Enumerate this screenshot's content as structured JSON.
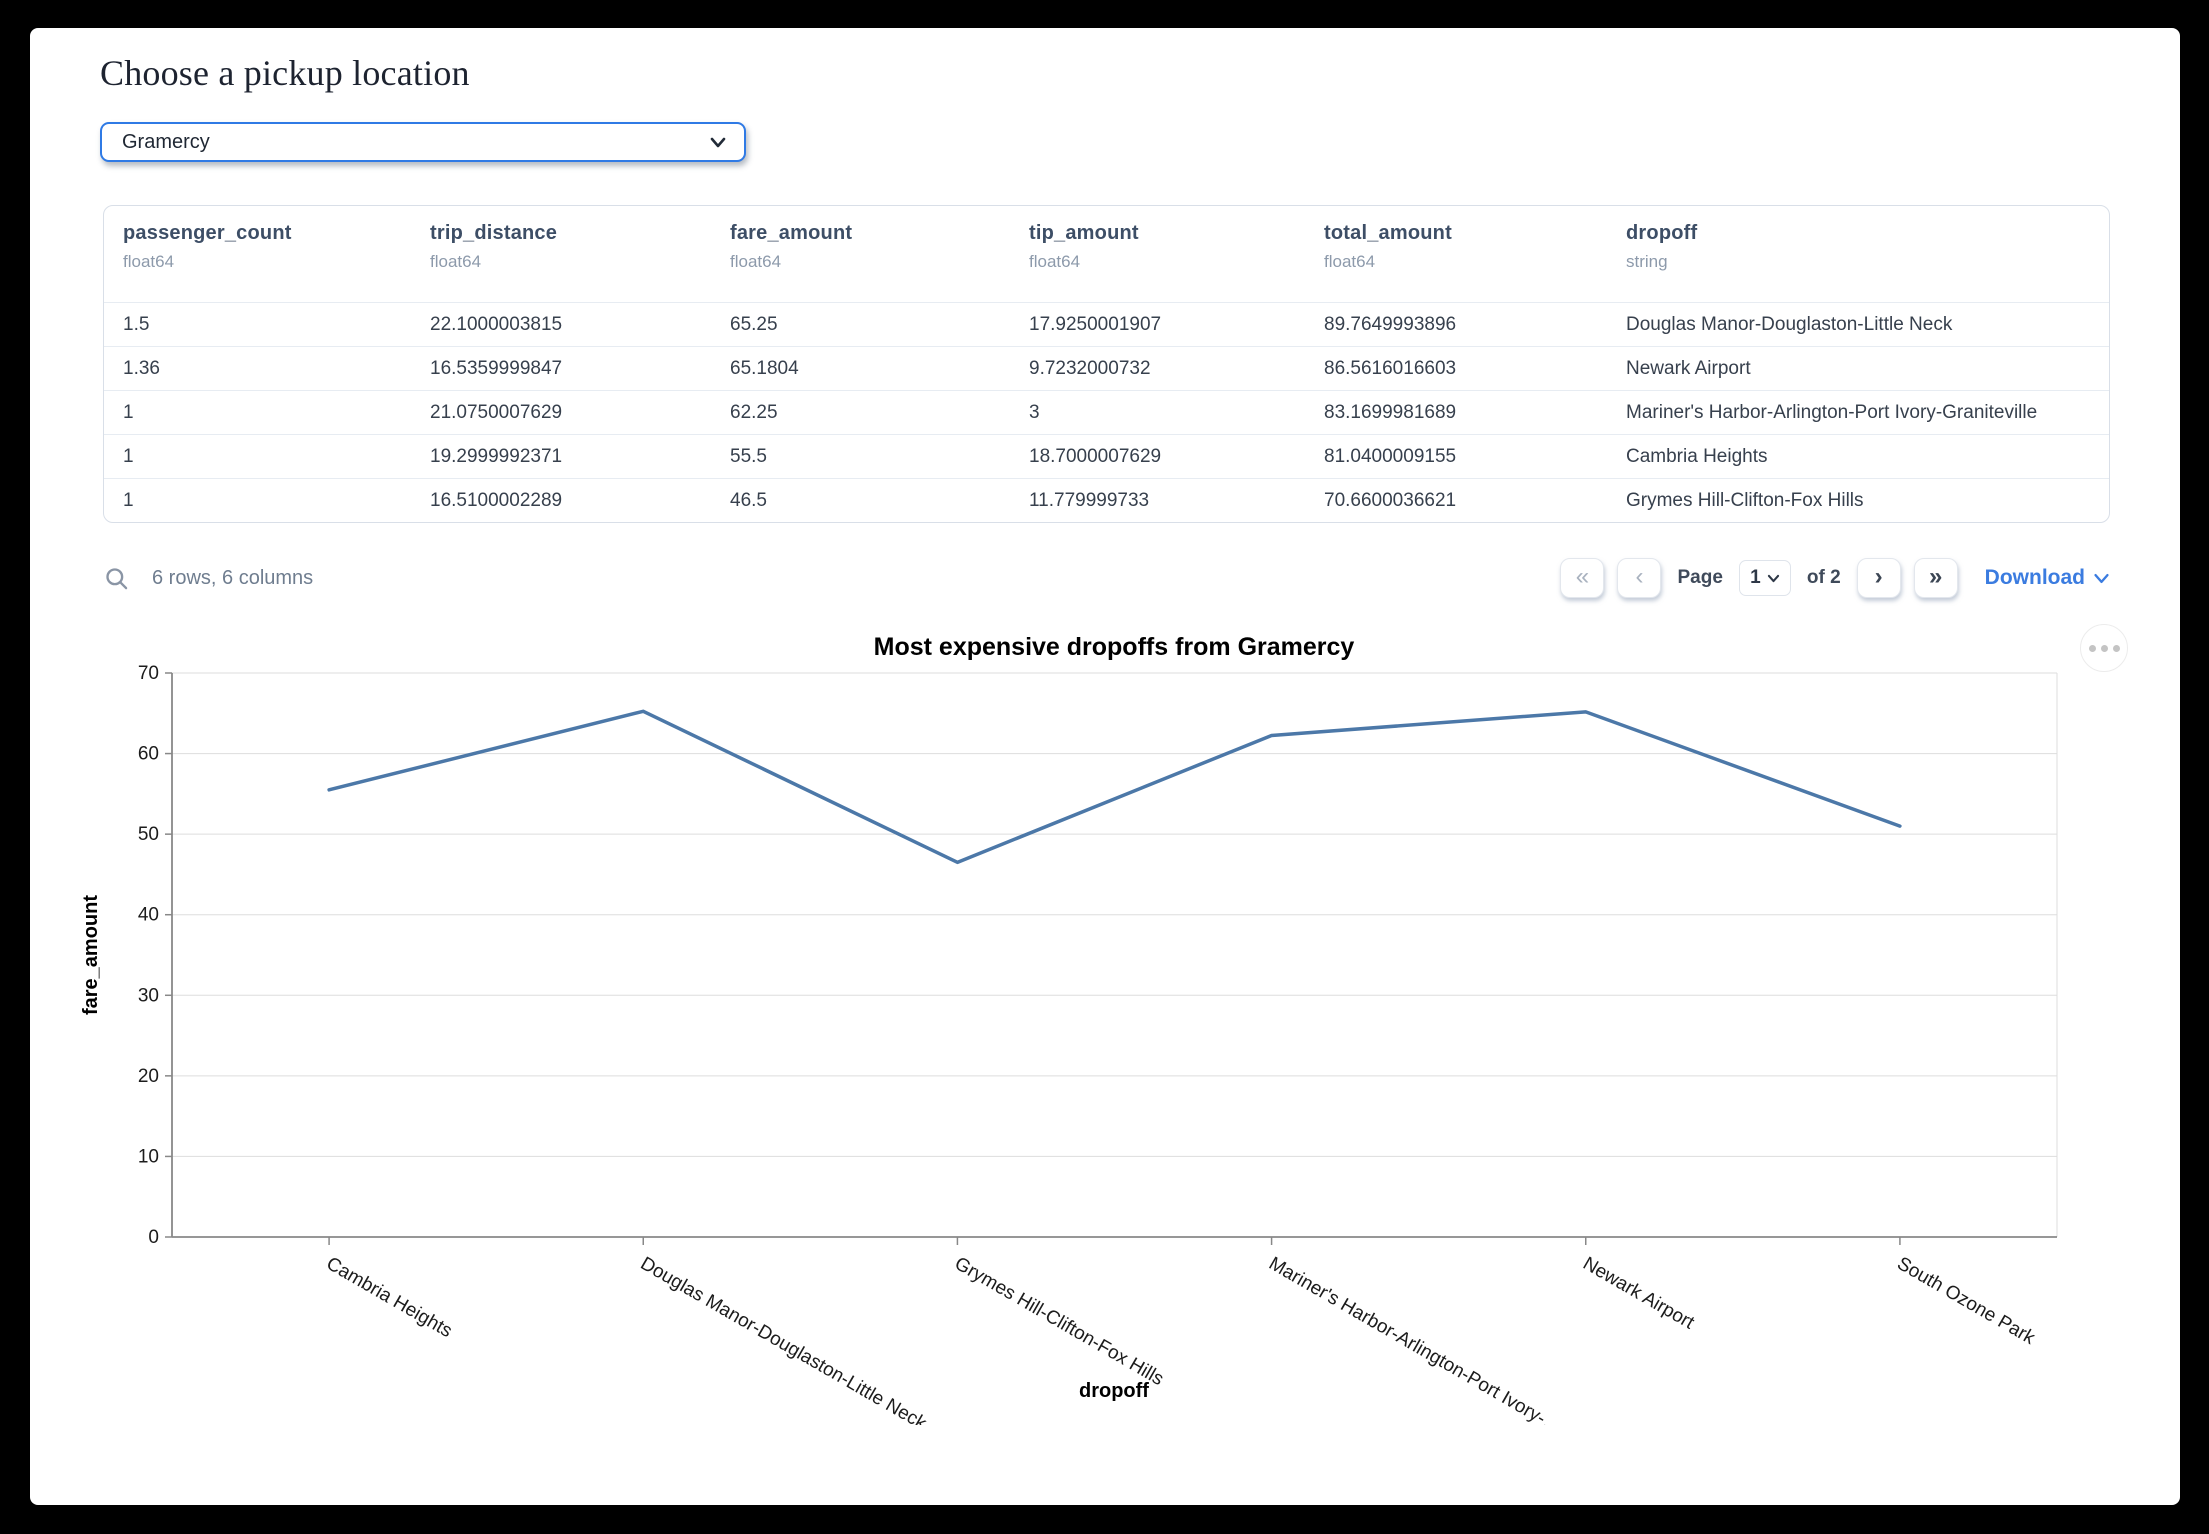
{
  "page": {
    "title": "Choose a pickup location"
  },
  "pickup_select": {
    "value": "Gramercy"
  },
  "table": {
    "columns": [
      {
        "name": "passenger_count",
        "dtype": "float64"
      },
      {
        "name": "trip_distance",
        "dtype": "float64"
      },
      {
        "name": "fare_amount",
        "dtype": "float64"
      },
      {
        "name": "tip_amount",
        "dtype": "float64"
      },
      {
        "name": "total_amount",
        "dtype": "float64"
      },
      {
        "name": "dropoff",
        "dtype": "string"
      }
    ],
    "rows": [
      [
        "1.5",
        "22.1000003815",
        "65.25",
        "17.9250001907",
        "89.7649993896",
        "Douglas Manor-Douglaston-Little Neck"
      ],
      [
        "1.36",
        "16.5359999847",
        "65.1804",
        "9.7232000732",
        "86.5616016603",
        "Newark Airport"
      ],
      [
        "1",
        "21.0750007629",
        "62.25",
        "3",
        "83.1699981689",
        "Mariner's Harbor-Arlington-Port Ivory-Graniteville"
      ],
      [
        "1",
        "19.2999992371",
        "55.5",
        "18.7000007629",
        "81.0400009155",
        "Cambria Heights"
      ],
      [
        "1",
        "16.5100002289",
        "46.5",
        "11.779999733",
        "70.6600036621",
        "Grymes Hill-Clifton-Fox Hills"
      ]
    ],
    "summary": "6 rows, 6 columns",
    "pagination": {
      "first_icon": "«",
      "prev_icon": "‹",
      "page_label": "Page",
      "page_value": "1",
      "of_label": "of 2",
      "next_icon": "›",
      "last_icon": "»",
      "download_label": "Download"
    }
  },
  "chart_data": {
    "type": "line",
    "title": "Most expensive dropoffs from Gramercy",
    "xlabel": "dropoff",
    "ylabel": "fare_amount",
    "categories": [
      "Cambria Heights",
      "Douglas Manor-Douglaston-Little Neck",
      "Grymes Hill-Clifton-Fox Hills",
      "Mariner's Harbor-Arlington-Port Ivory-…",
      "Newark Airport",
      "South Ozone Park"
    ],
    "values": [
      55.5,
      65.25,
      46.5,
      62.25,
      65.1804,
      51
    ],
    "ylim": [
      0,
      70
    ],
    "yticks": [
      0,
      10,
      20,
      30,
      40,
      50,
      60,
      70
    ],
    "grid": true,
    "legend": "none",
    "label_angle": 30,
    "line_color": "#4c78a8",
    "grid_color": "#dddddd",
    "axis_color": "#888888"
  }
}
